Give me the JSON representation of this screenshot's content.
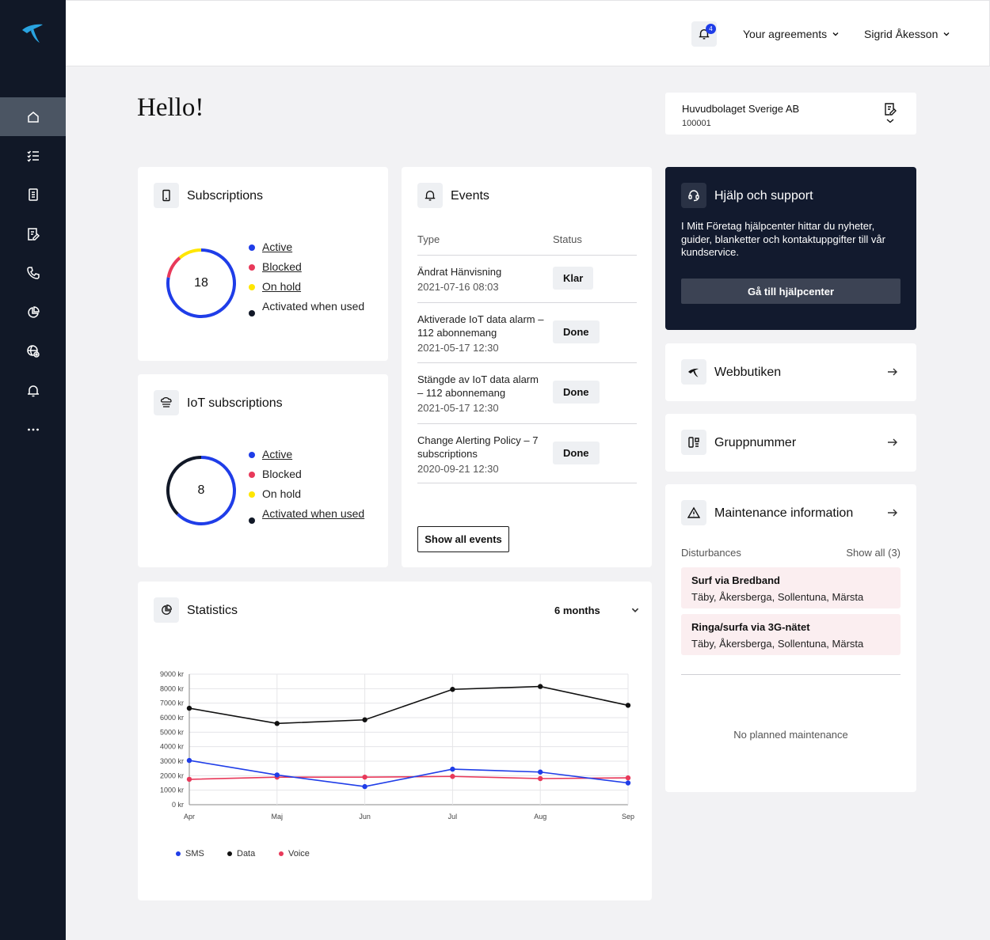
{
  "sidebar": {
    "items": [
      {
        "icon": "home-icon",
        "active": true
      },
      {
        "icon": "list-icon"
      },
      {
        "icon": "invoice-icon"
      },
      {
        "icon": "document-edit-icon"
      },
      {
        "icon": "phone-icon"
      },
      {
        "icon": "pie-chart-icon"
      },
      {
        "icon": "globe-pin-icon"
      },
      {
        "icon": "bell-icon"
      },
      {
        "icon": "more-icon"
      }
    ]
  },
  "header": {
    "notifications_count": "4",
    "agreements_label": "Your agreements",
    "user_name": "Sigrid Åkesson"
  },
  "greeting": "Hello!",
  "company": {
    "name": "Huvudbolaget Sverige AB",
    "number": "100001"
  },
  "subscriptions": {
    "title": "Subscriptions",
    "total": "18",
    "legend": [
      {
        "label": "Active",
        "count": "14",
        "color": "#1f3de8",
        "underline": true
      },
      {
        "label": "Blocked",
        "count": "2",
        "color": "#e8395a",
        "underline": true
      },
      {
        "label": "On hold",
        "count": "2",
        "color": "#ffe600",
        "underline": true
      },
      {
        "label": "Activated when used",
        "count": "0",
        "color": "#111827",
        "underline": false
      }
    ]
  },
  "iot": {
    "title": "IoT subscriptions",
    "total": "8",
    "legend": [
      {
        "label": "Active",
        "count": "5",
        "color": "#1f3de8",
        "underline": true
      },
      {
        "label": "Blocked",
        "count": "0",
        "color": "#e8395a",
        "underline": false
      },
      {
        "label": "On hold",
        "count": "0",
        "color": "#ffe600",
        "underline": false
      },
      {
        "label": "Activated when used",
        "count": "3",
        "color": "#111827",
        "underline": true
      }
    ]
  },
  "events": {
    "title": "Events",
    "col_type": "Type",
    "col_status": "Status",
    "rows": [
      {
        "title": "Ändrat Hänvisning",
        "date": "2021-07-16 08:03",
        "status": "Klar"
      },
      {
        "title": "Aktiverade IoT data alarm – 112 abonnemang",
        "date": "2021-05-17 12:30",
        "status": "Done"
      },
      {
        "title": "Stängde av IoT data alarm – 112 abonnemang",
        "date": "2021-05-17 12:30",
        "status": "Done"
      },
      {
        "title": "Change Alerting Policy – 7 subscriptions",
        "date": "2020-09-21 12:30",
        "status": "Done"
      }
    ],
    "show_all": "Show all events"
  },
  "help": {
    "title": "Hjälp och support",
    "text": "I Mitt Företag hjälpcenter hittar du nyheter, guider, blanketter och kontaktuppgifter till vår kundservice.",
    "button": "Gå till hjälpcenter"
  },
  "links": {
    "shop": "Webbutiken",
    "group": "Gruppnummer"
  },
  "maintenance": {
    "title": "Maintenance information",
    "disturbances_label": "Disturbances",
    "show_all": "Show all (3)",
    "items": [
      {
        "title": "Surf via Bredband",
        "areas": "Täby, Åkersberga, Sollentuna, Märsta"
      },
      {
        "title": "Ringa/surfa via 3G-nätet",
        "areas": "Täby, Åkersberga, Sollentuna, Märsta"
      }
    ],
    "no_planned": "No planned maintenance"
  },
  "statistics": {
    "title": "Statistics",
    "period": "6 months"
  },
  "chart_data": {
    "type": "line",
    "categories": [
      "Apr",
      "Maj",
      "Jun",
      "Jul",
      "Aug",
      "Sep"
    ],
    "y_ticks": [
      "0 kr",
      "1000 kr",
      "2000 kr",
      "3000 kr",
      "4000 kr",
      "5000 kr",
      "6000 kr",
      "7000 kr",
      "8000 kr",
      "9000 kr"
    ],
    "ylim": [
      0,
      9000
    ],
    "grid": true,
    "legend_position": "bottom-left",
    "series": [
      {
        "name": "SMS",
        "color": "#1f3de8",
        "values": [
          3050,
          2050,
          1250,
          2450,
          2250,
          1500
        ]
      },
      {
        "name": "Data",
        "color": "#111111",
        "values": [
          6650,
          5600,
          5850,
          7950,
          8150,
          6850
        ]
      },
      {
        "name": "Voice",
        "color": "#e8395a",
        "values": [
          1750,
          1900,
          1900,
          1950,
          1800,
          1850
        ]
      }
    ]
  }
}
